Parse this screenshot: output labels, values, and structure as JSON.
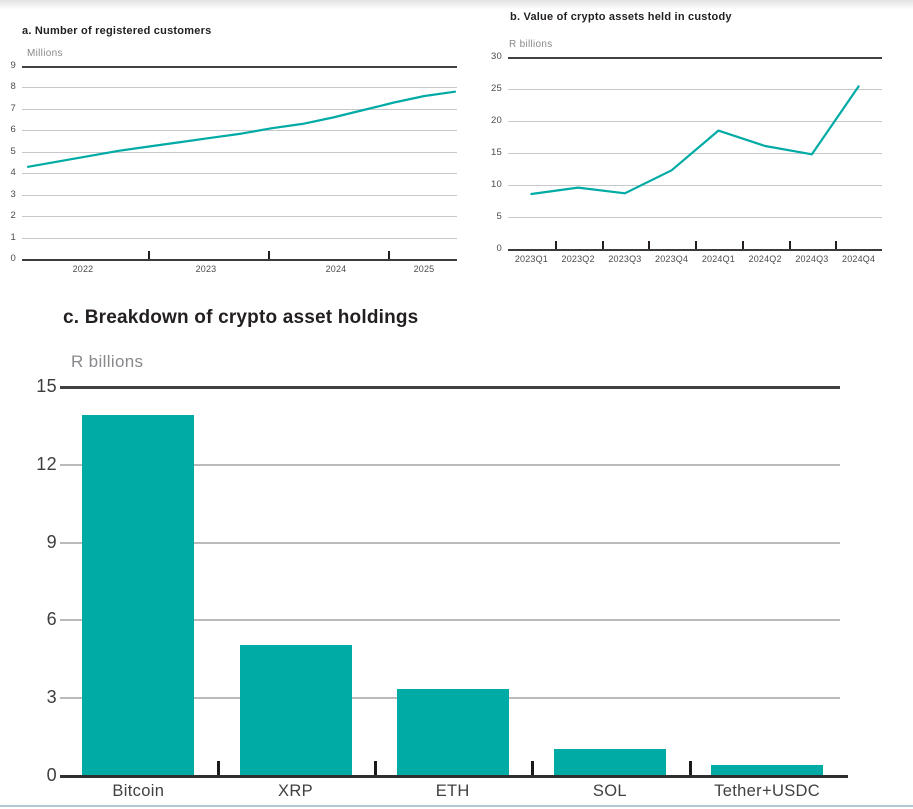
{
  "colors": {
    "accent": "#00ABA5",
    "grid_light": "#c7c8ca",
    "axis_dark": "#414042",
    "title_text": "#231f20",
    "unit_text": "#87898c",
    "tick_text": "#4b4c4e",
    "bottom_border": "#b3c9d2"
  },
  "chart_data": [
    {
      "type": "line",
      "title": "a. Number of registered customers",
      "ylabel": "Millions",
      "x": [
        "2022Q1",
        "2022Q2",
        "2022Q3",
        "2022Q4",
        "2023Q1",
        "2023Q2",
        "2023Q3",
        "2023Q4",
        "2024Q1",
        "2024Q2",
        "2024Q3",
        "2024Q4",
        "2025Q1",
        "2025Q2",
        "2025Q3"
      ],
      "values": [
        4.3,
        4.55,
        4.8,
        5.05,
        5.25,
        5.45,
        5.65,
        5.85,
        6.1,
        6.3,
        6.6,
        6.95,
        7.3,
        7.6,
        7.8
      ],
      "xticklabels": [
        "2022",
        "2023",
        "2024",
        "2025"
      ],
      "ylim": [
        0,
        9
      ],
      "yticks": [
        0,
        1,
        2,
        3,
        4,
        5,
        6,
        7,
        8,
        9
      ],
      "grid": "horizontal",
      "legend": "none"
    },
    {
      "type": "line",
      "title": "b. Value of crypto assets held in custody",
      "ylabel": "R billions",
      "x": [
        "2023Q1",
        "2023Q2",
        "2023Q3",
        "2023Q4",
        "2024Q1",
        "2024Q2",
        "2024Q3",
        "2024Q4"
      ],
      "values": [
        8.6,
        9.6,
        8.7,
        12.3,
        18.5,
        16.1,
        14.8,
        25.4
      ],
      "xticklabels": [
        "2023Q1",
        "2023Q2",
        "2023Q3",
        "2023Q4",
        "2024Q1",
        "2024Q2",
        "2024Q3",
        "2024Q4"
      ],
      "ylim": [
        0,
        30
      ],
      "yticks": [
        0,
        5,
        10,
        15,
        20,
        25,
        30
      ],
      "grid": "horizontal",
      "legend": "none"
    },
    {
      "type": "bar",
      "title": "c. Breakdown of crypto asset holdings",
      "ylabel": "R billions",
      "categories": [
        "Bitcoin",
        "XRP",
        "ETH",
        "SOL",
        "Tether+USDC"
      ],
      "values": [
        13.9,
        5.0,
        3.3,
        1.0,
        0.4
      ],
      "ylim": [
        0,
        15
      ],
      "yticks": [
        0,
        3,
        6,
        9,
        12,
        15
      ],
      "grid": "horizontal",
      "legend": "none"
    }
  ]
}
